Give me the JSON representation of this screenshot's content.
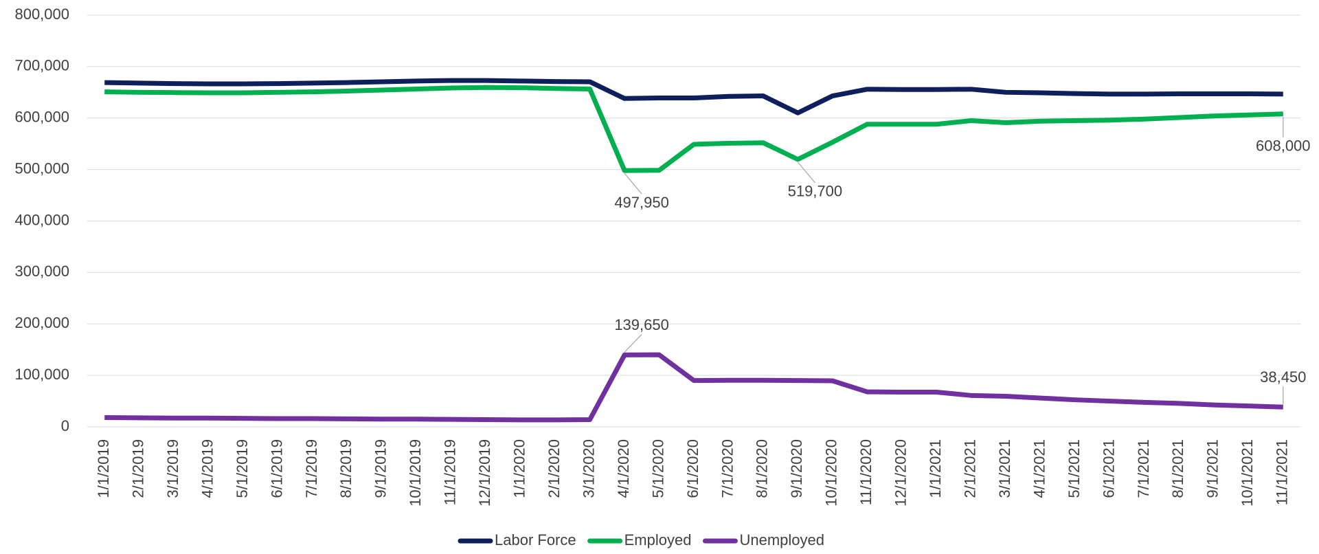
{
  "chart_data": {
    "type": "line",
    "categories": [
      "1/1/2019",
      "2/1/2019",
      "3/1/2019",
      "4/1/2019",
      "5/1/2019",
      "6/1/2019",
      "7/1/2019",
      "8/1/2019",
      "9/1/2019",
      "10/1/2019",
      "11/1/2019",
      "12/1/2019",
      "1/1/2020",
      "2/1/2020",
      "3/1/2020",
      "4/1/2020",
      "5/1/2020",
      "6/1/2020",
      "7/1/2020",
      "8/1/2020",
      "9/1/2020",
      "10/1/2020",
      "11/1/2020",
      "12/1/2020",
      "1/1/2021",
      "2/1/2021",
      "3/1/2021",
      "4/1/2021",
      "5/1/2021",
      "6/1/2021",
      "7/1/2021",
      "8/1/2021",
      "9/1/2021",
      "10/1/2021",
      "11/1/2021"
    ],
    "series": [
      {
        "name": "Labor Force",
        "color": "#0e1f5b",
        "values": [
          669000,
          668000,
          667000,
          666500,
          666500,
          667000,
          668000,
          669000,
          670500,
          672000,
          673000,
          673000,
          672000,
          671000,
          670500,
          638000,
          639000,
          639000,
          642000,
          643000,
          610000,
          643000,
          656000,
          655500,
          655500,
          656000,
          650000,
          649000,
          647500,
          646500,
          646500,
          647000,
          647000,
          647000,
          646500
        ]
      },
      {
        "name": "Employed",
        "color": "#00b050",
        "values": [
          651000,
          650000,
          649500,
          649000,
          649000,
          650000,
          651000,
          652500,
          654500,
          656500,
          658500,
          659500,
          659000,
          657500,
          656500,
          497950,
          498500,
          549000,
          551000,
          552000,
          519700,
          553000,
          588000,
          588000,
          588000,
          595000,
          591000,
          594000,
          595000,
          596000,
          598000,
          601000,
          604000,
          606000,
          608000
        ],
        "value_labels": [
          null,
          null,
          null,
          null,
          null,
          null,
          null,
          null,
          null,
          null,
          null,
          null,
          null,
          null,
          null,
          "497,950",
          null,
          null,
          null,
          null,
          "519,700",
          null,
          null,
          null,
          null,
          null,
          null,
          null,
          null,
          null,
          null,
          null,
          null,
          null,
          "608,000"
        ]
      },
      {
        "name": "Unemployed",
        "color": "#7030a0",
        "values": [
          18000,
          17500,
          17000,
          17000,
          16500,
          16000,
          16000,
          15500,
          15000,
          15000,
          14500,
          14000,
          13500,
          13500,
          14000,
          139650,
          140000,
          90000,
          90500,
          90500,
          90000,
          89500,
          68000,
          67500,
          67500,
          61000,
          59500,
          56000,
          52500,
          50000,
          47500,
          45500,
          42500,
          40500,
          38450
        ],
        "value_labels": [
          null,
          null,
          null,
          null,
          null,
          null,
          null,
          null,
          null,
          null,
          null,
          null,
          null,
          null,
          null,
          "139,650",
          null,
          null,
          null,
          null,
          null,
          null,
          null,
          null,
          null,
          null,
          null,
          null,
          null,
          null,
          null,
          null,
          null,
          null,
          "38,450"
        ]
      }
    ],
    "ylim": [
      0,
      800000
    ],
    "yticks": [
      0,
      {
        "value": 100000,
        "label": "100,000"
      },
      {
        "value": 200000,
        "label": "200,000"
      },
      {
        "value": 300000,
        "label": "300,000"
      },
      {
        "value": 400000,
        "label": "400,000"
      },
      {
        "value": 500000,
        "label": "500,000"
      },
      {
        "value": 600000,
        "label": "600,000"
      },
      {
        "value": 700000,
        "label": "700,000"
      },
      {
        "value": 800000,
        "label": "800,000"
      }
    ],
    "grid": true,
    "legend": "bottom"
  }
}
